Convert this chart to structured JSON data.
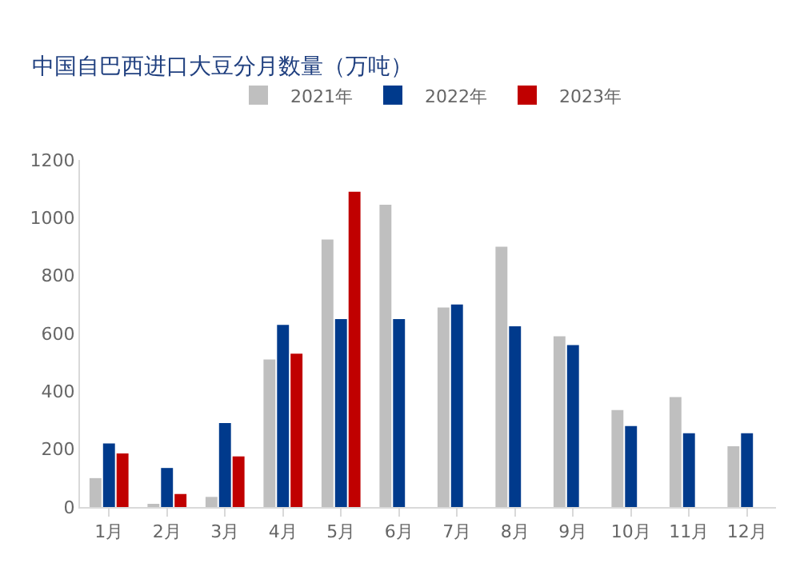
{
  "chart_data": {
    "type": "bar",
    "title": "中国自巴西进口大豆分月数量（万吨）",
    "categories": [
      "1月",
      "2月",
      "3月",
      "4月",
      "5月",
      "6月",
      "7月",
      "8月",
      "9月",
      "10月",
      "11月",
      "12月"
    ],
    "series": [
      {
        "name": "2021年",
        "color": "#bfbfbf",
        "values": [
          100,
          10,
          35,
          510,
          925,
          1045,
          690,
          900,
          590,
          335,
          380,
          210
        ]
      },
      {
        "name": "2022年",
        "color": "#003a8c",
        "values": [
          220,
          135,
          290,
          630,
          650,
          650,
          700,
          625,
          560,
          280,
          255,
          255
        ]
      },
      {
        "name": "2023年",
        "color": "#c00000",
        "values": [
          185,
          45,
          175,
          530,
          1090,
          null,
          null,
          null,
          null,
          null,
          null,
          null
        ]
      }
    ],
    "ylim": [
      0,
      1200
    ],
    "yticks": [
      0,
      200,
      400,
      600,
      800,
      1000,
      1200
    ],
    "grid": false,
    "legend": "top"
  }
}
